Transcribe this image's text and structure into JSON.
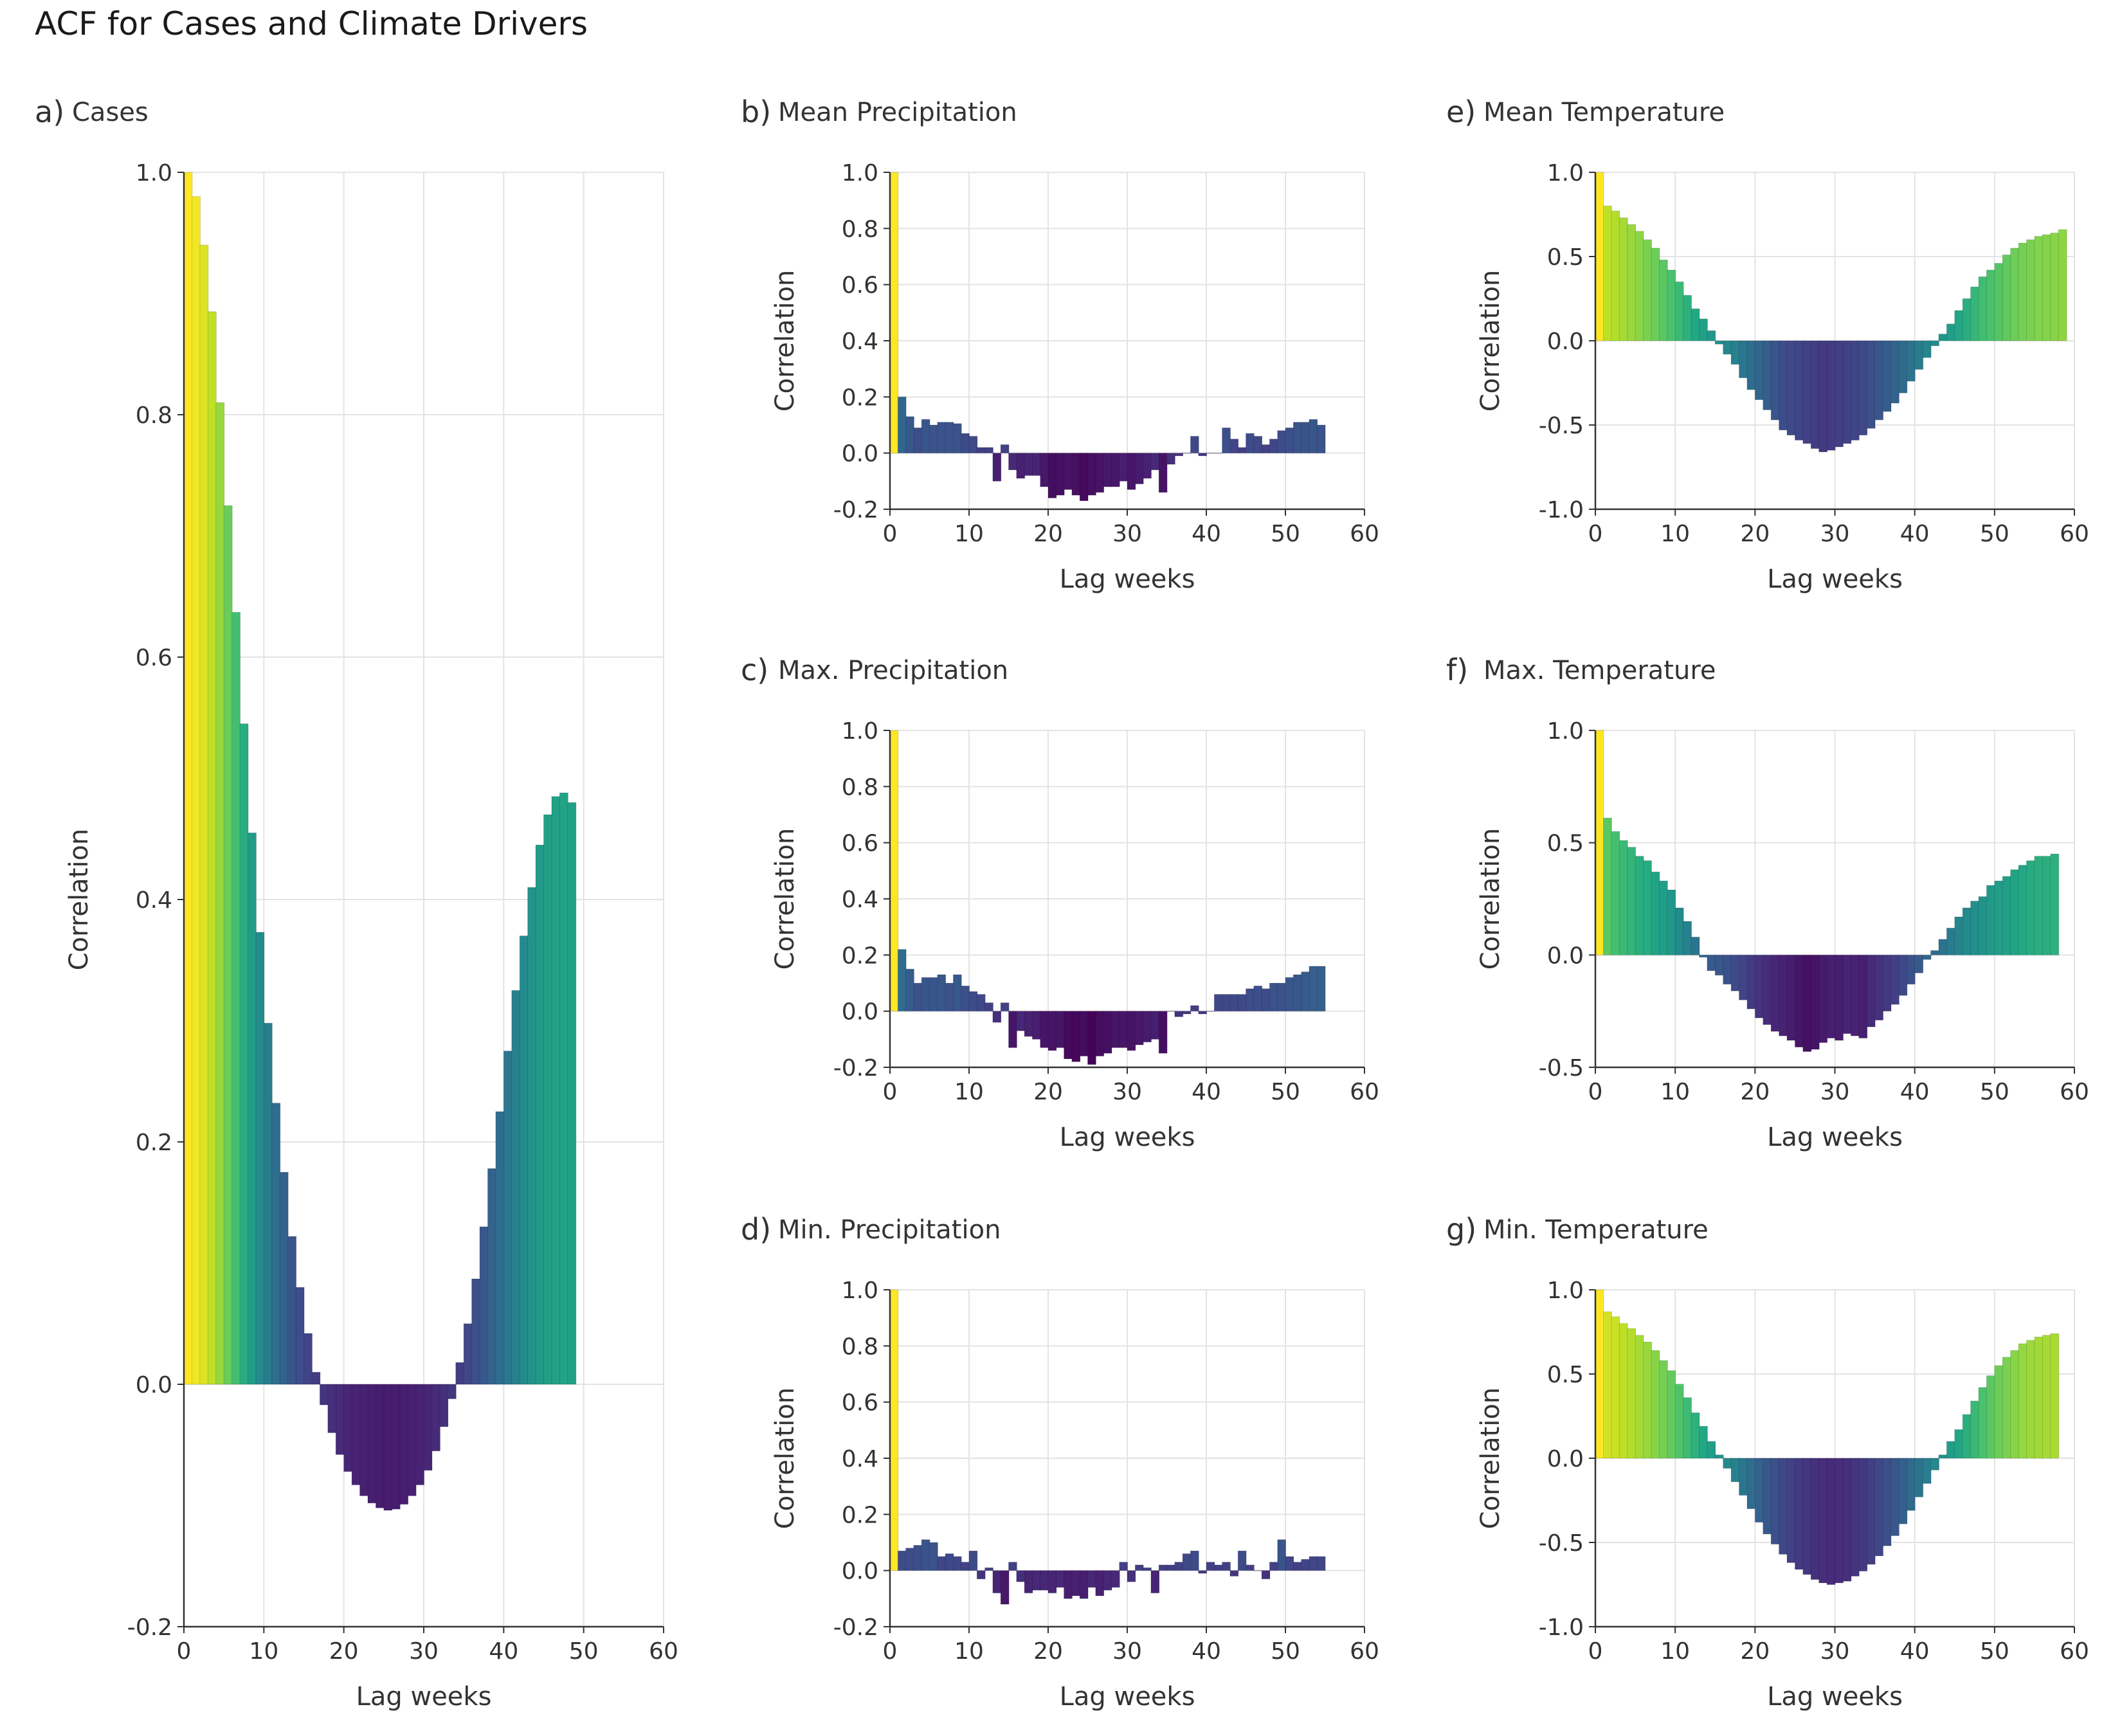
{
  "title": "ACF for Cases and Climate Drivers",
  "chart_data": [
    {
      "panel": "a)",
      "title": "Cases",
      "type": "bar",
      "xlabel": "Lag weeks",
      "ylabel": "Correlation",
      "xlim": [
        0,
        60
      ],
      "ylim": [
        -0.2,
        1.0
      ],
      "xticks": [
        "0",
        "10",
        "20",
        "30",
        "40",
        "50",
        "60"
      ],
      "yticks": [
        "-0.2",
        "0.0",
        "0.2",
        "0.4",
        "0.6",
        "0.8",
        "1.0"
      ],
      "grid": true,
      "lags_start": 0,
      "values": [
        1.0,
        0.98,
        0.94,
        0.885,
        0.81,
        0.725,
        0.637,
        0.545,
        0.455,
        0.373,
        0.298,
        0.232,
        0.175,
        0.122,
        0.08,
        0.042,
        0.01,
        -0.017,
        -0.04,
        -0.058,
        -0.072,
        -0.083,
        -0.092,
        -0.098,
        -0.102,
        -0.104,
        -0.103,
        -0.099,
        -0.092,
        -0.083,
        -0.071,
        -0.055,
        -0.035,
        -0.012,
        0.018,
        0.05,
        0.087,
        0.13,
        0.178,
        0.225,
        0.275,
        0.325,
        0.37,
        0.41,
        0.445,
        0.47,
        0.485,
        0.488,
        0.48
      ]
    },
    {
      "panel": "b)",
      "title": "Mean Precipitation",
      "type": "bar",
      "xlabel": "Lag weeks",
      "ylabel": "Correlation",
      "xlim": [
        0,
        60
      ],
      "ylim": [
        -0.2,
        1.0
      ],
      "xticks": [
        "0",
        "10",
        "20",
        "30",
        "40",
        "50",
        "60"
      ],
      "yticks": [
        "-0.2",
        "0.0",
        "0.2",
        "0.4",
        "0.6",
        "0.8",
        "1.0"
      ],
      "grid": true,
      "lags_start": 0,
      "values": [
        1.0,
        0.2,
        0.13,
        0.09,
        0.12,
        0.1,
        0.11,
        0.11,
        0.105,
        0.07,
        0.06,
        0.02,
        0.02,
        -0.1,
        0.03,
        -0.06,
        -0.09,
        -0.08,
        -0.08,
        -0.12,
        -0.16,
        -0.15,
        -0.13,
        -0.15,
        -0.17,
        -0.15,
        -0.14,
        -0.12,
        -0.12,
        -0.1,
        -0.13,
        -0.11,
        -0.09,
        -0.06,
        -0.14,
        -0.04,
        -0.01,
        0.0,
        0.06,
        -0.01,
        0.0,
        0.0,
        0.09,
        0.05,
        0.02,
        0.07,
        0.06,
        0.03,
        0.05,
        0.08,
        0.09,
        0.11,
        0.11,
        0.12,
        0.1
      ]
    },
    {
      "panel": "c)",
      "title": "Max. Precipitation",
      "type": "bar",
      "xlabel": "Lag weeks",
      "ylabel": "Correlation",
      "xlim": [
        0,
        60
      ],
      "ylim": [
        -0.2,
        1.0
      ],
      "xticks": [
        "0",
        "10",
        "20",
        "30",
        "40",
        "50",
        "60"
      ],
      "yticks": [
        "-0.2",
        "0.0",
        "0.2",
        "0.4",
        "0.6",
        "0.8",
        "1.0"
      ],
      "grid": true,
      "lags_start": 0,
      "values": [
        1.0,
        0.22,
        0.15,
        0.1,
        0.12,
        0.12,
        0.13,
        0.1,
        0.13,
        0.09,
        0.07,
        0.06,
        0.03,
        -0.04,
        0.03,
        -0.13,
        -0.07,
        -0.09,
        -0.1,
        -0.13,
        -0.14,
        -0.13,
        -0.17,
        -0.18,
        -0.16,
        -0.19,
        -0.16,
        -0.15,
        -0.13,
        -0.13,
        -0.14,
        -0.12,
        -0.11,
        -0.1,
        -0.15,
        0.0,
        -0.02,
        -0.01,
        0.02,
        -0.01,
        0.0,
        0.06,
        0.06,
        0.06,
        0.06,
        0.08,
        0.09,
        0.08,
        0.1,
        0.1,
        0.12,
        0.13,
        0.14,
        0.16,
        0.16
      ]
    },
    {
      "panel": "d)",
      "title": "Min. Precipitation",
      "type": "bar",
      "xlabel": "Lag weeks",
      "ylabel": "Correlation",
      "xlim": [
        0,
        60
      ],
      "ylim": [
        -0.2,
        1.0
      ],
      "xticks": [
        "0",
        "10",
        "20",
        "30",
        "40",
        "50",
        "60"
      ],
      "yticks": [
        "-0.2",
        "0.0",
        "0.2",
        "0.4",
        "0.6",
        "0.8",
        "1.0"
      ],
      "grid": true,
      "lags_start": 0,
      "values": [
        1.0,
        0.07,
        0.08,
        0.09,
        0.11,
        0.1,
        0.05,
        0.06,
        0.05,
        0.03,
        0.07,
        -0.03,
        0.01,
        -0.08,
        -0.12,
        0.03,
        -0.04,
        -0.08,
        -0.07,
        -0.07,
        -0.08,
        -0.06,
        -0.1,
        -0.09,
        -0.1,
        -0.06,
        -0.09,
        -0.07,
        -0.06,
        0.03,
        -0.04,
        0.02,
        0.01,
        -0.08,
        0.02,
        0.02,
        0.03,
        0.06,
        0.07,
        -0.01,
        0.03,
        0.02,
        0.03,
        -0.02,
        0.07,
        0.02,
        0.0,
        -0.03,
        0.03,
        0.11,
        0.05,
        0.03,
        0.04,
        0.05,
        0.05
      ]
    },
    {
      "panel": "e)",
      "title": "Mean Temperature",
      "type": "bar",
      "xlabel": "Lag weeks",
      "ylabel": "Correlation",
      "xlim": [
        0,
        60
      ],
      "ylim": [
        -1.0,
        1.0
      ],
      "xticks": [
        "0",
        "10",
        "20",
        "30",
        "40",
        "50",
        "60"
      ],
      "yticks": [
        "-1.0",
        "-0.5",
        "0.0",
        "0.5",
        "1.0"
      ],
      "grid": true,
      "lags_start": 0,
      "values": [
        1.0,
        0.8,
        0.77,
        0.73,
        0.69,
        0.65,
        0.6,
        0.55,
        0.48,
        0.42,
        0.35,
        0.27,
        0.19,
        0.13,
        0.06,
        -0.02,
        -0.08,
        -0.14,
        -0.22,
        -0.29,
        -0.35,
        -0.41,
        -0.47,
        -0.53,
        -0.56,
        -0.59,
        -0.61,
        -0.64,
        -0.66,
        -0.65,
        -0.63,
        -0.61,
        -0.59,
        -0.56,
        -0.52,
        -0.47,
        -0.42,
        -0.37,
        -0.31,
        -0.24,
        -0.17,
        -0.1,
        -0.03,
        0.04,
        0.1,
        0.18,
        0.25,
        0.32,
        0.38,
        0.42,
        0.46,
        0.51,
        0.55,
        0.58,
        0.6,
        0.62,
        0.63,
        0.64,
        0.66
      ]
    },
    {
      "panel": "f)",
      "title": "Max. Temperature",
      "type": "bar",
      "xlabel": "Lag weeks",
      "ylabel": "Correlation",
      "xlim": [
        0,
        60
      ],
      "ylim": [
        -0.5,
        1.0
      ],
      "xticks": [
        "0",
        "10",
        "20",
        "30",
        "40",
        "50",
        "60"
      ],
      "yticks": [
        "-0.5",
        "0.0",
        "0.5",
        "1.0"
      ],
      "grid": true,
      "lags_start": 0,
      "values": [
        1.0,
        0.61,
        0.55,
        0.51,
        0.48,
        0.44,
        0.42,
        0.37,
        0.33,
        0.29,
        0.21,
        0.15,
        0.08,
        -0.01,
        -0.07,
        -0.09,
        -0.13,
        -0.16,
        -0.2,
        -0.24,
        -0.28,
        -0.31,
        -0.34,
        -0.36,
        -0.38,
        -0.41,
        -0.43,
        -0.42,
        -0.39,
        -0.37,
        -0.38,
        -0.35,
        -0.36,
        -0.37,
        -0.32,
        -0.29,
        -0.25,
        -0.22,
        -0.18,
        -0.13,
        -0.08,
        -0.02,
        0.02,
        0.07,
        0.12,
        0.17,
        0.21,
        0.24,
        0.26,
        0.31,
        0.33,
        0.35,
        0.38,
        0.4,
        0.42,
        0.44,
        0.44,
        0.45
      ]
    },
    {
      "panel": "g)",
      "title": "Min. Temperature",
      "type": "bar",
      "xlabel": "Lag weeks",
      "ylabel": "Correlation",
      "xlim": [
        0,
        60
      ],
      "ylim": [
        -1.0,
        1.0
      ],
      "xticks": [
        "0",
        "10",
        "20",
        "30",
        "40",
        "50",
        "60"
      ],
      "yticks": [
        "-1.0",
        "-0.5",
        "0.0",
        "0.5",
        "1.0"
      ],
      "grid": true,
      "lags_start": 0,
      "values": [
        1.0,
        0.87,
        0.84,
        0.8,
        0.77,
        0.73,
        0.69,
        0.64,
        0.58,
        0.52,
        0.44,
        0.36,
        0.27,
        0.19,
        0.1,
        0.02,
        -0.06,
        -0.14,
        -0.22,
        -0.3,
        -0.38,
        -0.45,
        -0.51,
        -0.57,
        -0.62,
        -0.66,
        -0.69,
        -0.72,
        -0.74,
        -0.75,
        -0.74,
        -0.73,
        -0.7,
        -0.67,
        -0.63,
        -0.58,
        -0.52,
        -0.46,
        -0.39,
        -0.31,
        -0.23,
        -0.15,
        -0.07,
        0.02,
        0.1,
        0.17,
        0.26,
        0.34,
        0.42,
        0.49,
        0.55,
        0.6,
        0.64,
        0.68,
        0.7,
        0.72,
        0.73,
        0.74
      ]
    }
  ]
}
